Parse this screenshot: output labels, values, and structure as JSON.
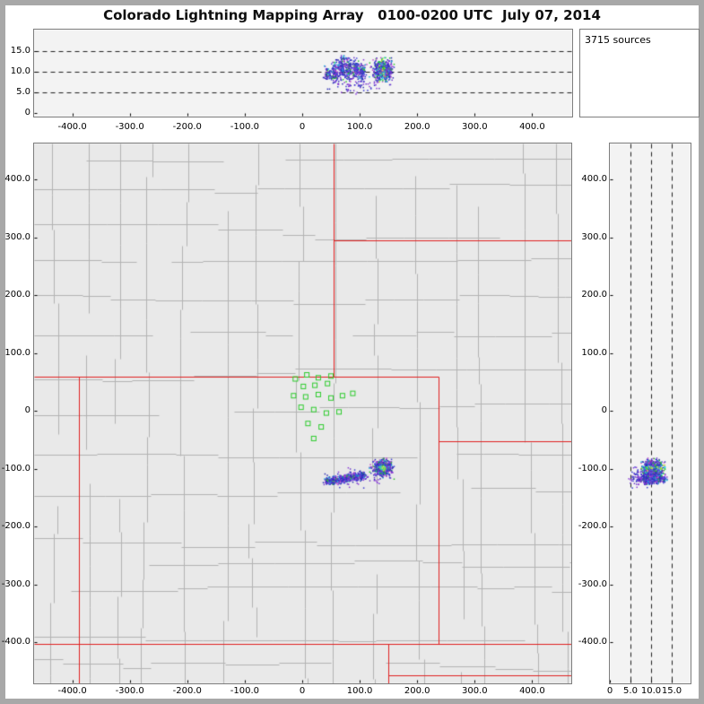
{
  "title": "Colorado Lightning Mapping Array   0100-0200 UTC  July 07, 2014",
  "sources_label": "3715 sources",
  "colors": {
    "frame": "#a8a8a8",
    "panel_border": "#7e7e7e",
    "map_bg": "#e9e9e9",
    "side_bg": "#f3f3f3",
    "county_line": "#b3b3b3",
    "state_border": "#e02020",
    "station": "#2ecc2e",
    "dash_line": "#222222",
    "text": "#000000",
    "point_palette": [
      "#2d2db6",
      "#2d2db6",
      "#2d2db6",
      "#3a3ad2",
      "#4848e0",
      "#6e38cc",
      "#8a3ad8",
      "#1bb8d8",
      "#2cc42c",
      "#c04cc8"
    ],
    "sparse_palette": [
      "#2d2db6",
      "#3a3ad2",
      "#6e38cc",
      "#8a3ad8"
    ],
    "core_palette": [
      "#18c8e0",
      "#30d060",
      "#b8e018",
      "#40b0f0",
      "#e8e050"
    ]
  },
  "axes": {
    "ew": {
      "values": [
        -400,
        -300,
        -200,
        -100,
        0,
        100,
        200,
        300,
        400
      ],
      "labels": [
        "-400.0",
        "-300.0",
        "-200.0",
        "-100.0",
        "0",
        "100.0",
        "200.0",
        "300.0",
        "400.0"
      ]
    },
    "ns": {
      "values": [
        -400,
        -300,
        -200,
        -100,
        0,
        100,
        200,
        300,
        400
      ],
      "labels": [
        "-400.0",
        "-300.0",
        "-200.0",
        "-100.0",
        "0",
        "100.0",
        "200.0",
        "300.0",
        "400.0"
      ]
    },
    "alt": {
      "values": [
        0,
        5,
        10,
        15
      ],
      "labels": [
        "0",
        "5.0",
        "10.0",
        "15.0"
      ]
    }
  },
  "chart_data": {
    "type": "scatter",
    "title": "Colorado Lightning Mapping Array 0100-0200 UTC July 07, 2014",
    "total_sources": 3715,
    "panels": [
      {
        "id": "altitude-vs-east-west",
        "xlim": [
          -466,
          468
        ],
        "ylim": [
          0,
          20
        ],
        "x_tick_labels": [
          "-400.0",
          "-300.0",
          "-200.0",
          "-100.0",
          "0",
          "100.0",
          "200.0",
          "300.0",
          "400.0"
        ],
        "y_tick_labels": [
          "0",
          "5.0",
          "10.0",
          "15.0"
        ],
        "dashed_gridlines_y": [
          5,
          10,
          15
        ]
      },
      {
        "id": "plan-view-map",
        "xlim": [
          -466,
          468
        ],
        "ylim": [
          -471,
          462
        ],
        "x_tick_labels": [
          "-400.0",
          "-300.0",
          "-200.0",
          "-100.0",
          "0",
          "100.0",
          "200.0",
          "300.0",
          "400.0"
        ],
        "y_tick_labels": [
          "-400.0",
          "-300.0",
          "-200.0",
          "-100.0",
          "0",
          "100.0",
          "200.0",
          "300.0",
          "400.0"
        ]
      },
      {
        "id": "altitude-vs-north-south",
        "xlim": [
          0,
          19.5
        ],
        "ylim": [
          -471,
          462
        ],
        "x_tick_labels": [
          "0",
          "5.0",
          "10.0",
          "15.0"
        ],
        "dashed_gridlines_x": [
          5,
          10,
          15
        ]
      }
    ],
    "source_clusters": [
      {
        "x": 45,
        "y": -122,
        "sx": 3,
        "sy": 3,
        "alt": [
          8.0,
          11.0
        ],
        "n": 70
      },
      {
        "x": 57,
        "y": -120,
        "sx": 3.5,
        "sy": 3,
        "alt": [
          7.5,
          12.5
        ],
        "n": 110
      },
      {
        "x": 69,
        "y": -118,
        "sx": 3.5,
        "sy": 3,
        "alt": [
          8.0,
          13.5
        ],
        "n": 130
      },
      {
        "x": 81,
        "y": -116,
        "sx": 3.5,
        "sy": 3,
        "alt": [
          8.0,
          13.0
        ],
        "n": 120
      },
      {
        "x": 93,
        "y": -114,
        "sx": 3,
        "sy": 3,
        "alt": [
          8.5,
          13.0
        ],
        "n": 95
      },
      {
        "x": 104,
        "y": -112,
        "sx": 3,
        "sy": 3,
        "alt": [
          8.0,
          12.5
        ],
        "n": 95
      },
      {
        "x": 95,
        "y": -116,
        "sx": 26,
        "sy": 8,
        "alt": [
          5.0,
          9.0
        ],
        "n": 80,
        "sparse": true
      },
      {
        "x": 140,
        "y": -99,
        "sx": 8,
        "sy": 7,
        "alt": [
          8.0,
          13.0
        ],
        "n": 560,
        "core": true
      }
    ],
    "lma_stations": [
      [
        -12,
        55
      ],
      [
        8,
        62
      ],
      [
        28,
        57
      ],
      [
        50,
        60
      ],
      [
        2,
        42
      ],
      [
        22,
        44
      ],
      [
        44,
        47
      ],
      [
        -15,
        26
      ],
      [
        6,
        24
      ],
      [
        28,
        28
      ],
      [
        50,
        22
      ],
      [
        70,
        26
      ],
      [
        88,
        30
      ],
      [
        -2,
        6
      ],
      [
        20,
        2
      ],
      [
        42,
        -4
      ],
      [
        64,
        -2
      ],
      [
        10,
        -22
      ],
      [
        33,
        -28
      ],
      [
        20,
        -48
      ]
    ],
    "state_border_segments": [
      [
        [
          -466,
          59
        ],
        [
          237,
          59
        ]
      ],
      [
        [
          55,
          462
        ],
        [
          55,
          59
        ]
      ],
      [
        [
          55,
          294
        ],
        [
          468,
          294
        ]
      ],
      [
        [
          -388,
          59
        ],
        [
          -388,
          -471
        ]
      ],
      [
        [
          237,
          59
        ],
        [
          237,
          -403
        ]
      ],
      [
        [
          237,
          -52
        ],
        [
          468,
          -52
        ]
      ],
      [
        [
          -466,
          -403
        ],
        [
          468,
          -403
        ]
      ],
      [
        [
          150,
          -403
        ],
        [
          150,
          -471
        ]
      ],
      [
        [
          150,
          -458
        ],
        [
          468,
          -458
        ]
      ]
    ],
    "basemap": {
      "seed": 42,
      "county_grid": true
    }
  }
}
